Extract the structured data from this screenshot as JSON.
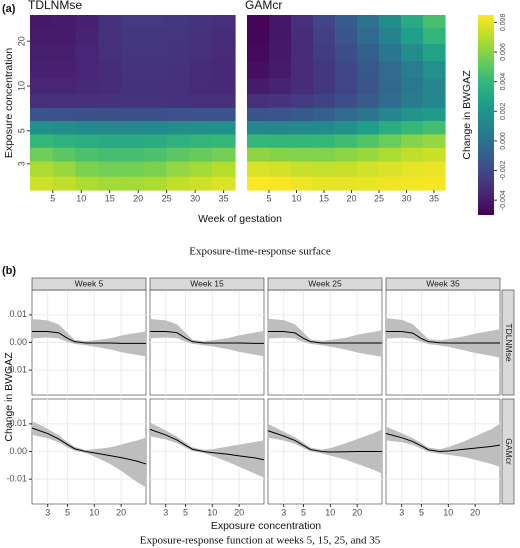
{
  "chart_data": [
    {
      "type": "heatmap",
      "panel_label": "(a)",
      "caption": "Exposure-time-response surface",
      "xlabel": "Week of gestation",
      "ylabel": "Exposure concentration",
      "colorbar_label": "Change in BWGAZ",
      "x": [
        3,
        7,
        11,
        15,
        19,
        23,
        27,
        31,
        35
      ],
      "y": [
        2.2,
        2.8,
        3.5,
        4.3,
        5.3,
        6.5,
        8,
        10,
        13,
        17,
        22,
        28
      ],
      "xlim": [
        1,
        37
      ],
      "ylim": [
        2,
        30
      ],
      "ylog": true,
      "xticks": [
        5,
        10,
        15,
        20,
        25,
        30,
        35
      ],
      "yticks": [
        3,
        5,
        10,
        20
      ],
      "zlim": [
        -0.005,
        0.0085
      ],
      "zticks": [
        -0.004,
        -0.002,
        {
          "value": 0,
          "label": "0.000"
        },
        0.002,
        0.004,
        0.006,
        0.008
      ],
      "colormap": "viridis",
      "panels": [
        {
          "title": "TDLNMse",
          "z": [
            [
              0.0075,
              0.0072,
              0.0068,
              0.0066,
              0.0066,
              0.0068,
              0.0072,
              0.0075,
              0.0078
            ],
            [
              0.0068,
              0.0064,
              0.0058,
              0.0056,
              0.0056,
              0.0058,
              0.0063,
              0.0066,
              0.007
            ],
            [
              0.0055,
              0.005,
              0.0046,
              0.0044,
              0.0044,
              0.0046,
              0.005,
              0.0053,
              0.0056
            ],
            [
              0.004,
              0.0036,
              0.0034,
              0.0032,
              0.0032,
              0.0033,
              0.0036,
              0.0038,
              0.004
            ],
            [
              0.0018,
              0.0016,
              0.0014,
              0.0013,
              0.0013,
              0.0014,
              0.0016,
              0.0017,
              0.0018
            ],
            [
              -0.0015,
              -0.0016,
              -0.0017,
              -0.0017,
              -0.0017,
              -0.0017,
              -0.0016,
              -0.0015,
              -0.0015
            ],
            [
              -0.0032,
              -0.0032,
              -0.0032,
              -0.0031,
              -0.003,
              -0.003,
              -0.0031,
              -0.0032,
              -0.0032
            ],
            [
              -0.0036,
              -0.0036,
              -0.0035,
              -0.0033,
              -0.0031,
              -0.0031,
              -0.0032,
              -0.0034,
              -0.0035
            ],
            [
              -0.0038,
              -0.0038,
              -0.0036,
              -0.0033,
              -0.003,
              -0.003,
              -0.0031,
              -0.0033,
              -0.0035
            ],
            [
              -0.0039,
              -0.0039,
              -0.0036,
              -0.0032,
              -0.0029,
              -0.0029,
              -0.003,
              -0.0032,
              -0.0034
            ],
            [
              -0.004,
              -0.004,
              -0.0037,
              -0.0031,
              -0.0028,
              -0.0028,
              -0.0029,
              -0.0031,
              -0.0033
            ],
            [
              -0.0041,
              -0.004,
              -0.0038,
              -0.0031,
              -0.0027,
              -0.0027,
              -0.0028,
              -0.003,
              -0.0032
            ]
          ]
        },
        {
          "title": "GAMcr",
          "z": [
            [
              0.0085,
              0.0084,
              0.0082,
              0.008,
              0.008,
              0.0081,
              0.0082,
              0.0083,
              0.0084
            ],
            [
              0.0078,
              0.0076,
              0.0074,
              0.0073,
              0.0074,
              0.0076,
              0.0078,
              0.008,
              0.0081
            ],
            [
              0.0062,
              0.006,
              0.0059,
              0.0059,
              0.0061,
              0.0064,
              0.0068,
              0.0072,
              0.0074
            ],
            [
              0.004,
              0.0039,
              0.0039,
              0.004,
              0.0043,
              0.0048,
              0.0054,
              0.006,
              0.0063
            ],
            [
              0.0012,
              0.0012,
              0.0013,
              0.0015,
              0.0019,
              0.0025,
              0.0033,
              0.004,
              0.0044
            ],
            [
              -0.0015,
              -0.0014,
              -0.0012,
              -0.0009,
              -0.0004,
              0.0003,
              0.0012,
              0.002,
              0.0024
            ],
            [
              -0.0032,
              -0.003,
              -0.0027,
              -0.0023,
              -0.0018,
              -0.0011,
              -0.0002,
              0.0006,
              0.0012
            ],
            [
              -0.004,
              -0.0037,
              -0.0033,
              -0.0028,
              -0.0022,
              -0.0014,
              -0.0005,
              0.0004,
              0.0012
            ],
            [
              -0.0045,
              -0.004,
              -0.0034,
              -0.0028,
              -0.0021,
              -0.0013,
              -0.0003,
              0.0008,
              0.0018
            ],
            [
              -0.0047,
              -0.0041,
              -0.0034,
              -0.0026,
              -0.0018,
              -0.0009,
              0.0003,
              0.0016,
              0.0028
            ],
            [
              -0.0048,
              -0.0042,
              -0.0033,
              -0.0024,
              -0.0014,
              -0.0004,
              0.001,
              0.0026,
              0.0038
            ],
            [
              -0.0048,
              -0.0042,
              -0.0032,
              -0.0022,
              -0.0011,
              0.0001,
              0.0016,
              0.0032,
              0.0045
            ]
          ]
        }
      ]
    },
    {
      "type": "facet-line",
      "panel_label": "(b)",
      "caption": "Exposure-response function at weeks 5, 15, 25, and 35",
      "xlabel": "Exposure concentration",
      "ylabel": "Change in BWGAZ",
      "x": [
        2,
        3,
        4,
        5,
        6,
        8,
        10,
        15,
        20,
        30,
        38
      ],
      "xlim": [
        2,
        38
      ],
      "xlog": true,
      "xticks": [
        3,
        5,
        10,
        20
      ],
      "ylim": [
        -0.019,
        0.019
      ],
      "yticks": [
        -0.01,
        {
          "value": 0,
          "label": "0.00"
        },
        0.01
      ],
      "grid": true,
      "line_color": "#000000",
      "band_color": "#bebebe",
      "columns": [
        "Week 5",
        "Week 15",
        "Week 25",
        "Week 35"
      ],
      "rows": [
        "TDLNMse",
        "GAMcr"
      ],
      "facets": [
        [
          {
            "values": [
              0.004,
              0.004,
              0.0035,
              0.0015,
              0.0003,
              -0.0002,
              -0.0002,
              -0.0002,
              -0.0003,
              -0.0003,
              -0.0003
            ],
            "lower": [
              0.0015,
              0.0018,
              0.0015,
              0.0002,
              -0.0005,
              -0.001,
              -0.0015,
              -0.0025,
              -0.0035,
              -0.0045,
              -0.005
            ],
            "upper": [
              0.0085,
              0.008,
              0.0065,
              0.0035,
              0.001,
              0.0005,
              0.0008,
              0.0015,
              0.0025,
              0.0035,
              0.004
            ]
          },
          {
            "values": [
              0.004,
              0.004,
              0.0036,
              0.0016,
              0.0003,
              -0.0002,
              -0.0002,
              -0.0002,
              -0.0002,
              -0.0003,
              -0.0003
            ],
            "lower": [
              0.0015,
              0.0018,
              0.0016,
              0.0003,
              -0.0005,
              -0.001,
              -0.0014,
              -0.0024,
              -0.0034,
              -0.0044,
              -0.005
            ],
            "upper": [
              0.0085,
              0.008,
              0.0066,
              0.0035,
              0.001,
              0.0005,
              0.0008,
              0.0016,
              0.0026,
              0.0036,
              0.0042
            ]
          },
          {
            "values": [
              0.004,
              0.004,
              0.0035,
              0.0015,
              0.0003,
              -0.0002,
              -0.0002,
              -0.0002,
              -0.0002,
              -0.0002,
              -0.0002
            ],
            "lower": [
              0.0014,
              0.0017,
              0.0015,
              0.0002,
              -0.0005,
              -0.001,
              -0.0015,
              -0.0026,
              -0.0036,
              -0.0046,
              -0.0052
            ],
            "upper": [
              0.0086,
              0.0081,
              0.0066,
              0.0036,
              0.0011,
              0.0006,
              0.0009,
              0.0017,
              0.0028,
              0.0038,
              0.0045
            ]
          },
          {
            "values": [
              0.004,
              0.004,
              0.0034,
              0.0014,
              0.0003,
              -0.0001,
              -0.0002,
              -0.0002,
              -0.0002,
              -0.0002,
              -0.0002
            ],
            "lower": [
              0.0014,
              0.0017,
              0.0014,
              0.0002,
              -0.0006,
              -0.0011,
              -0.0016,
              -0.0028,
              -0.0038,
              -0.0048,
              -0.0055
            ],
            "upper": [
              0.0088,
              0.0082,
              0.0066,
              0.0036,
              0.0012,
              0.0008,
              0.0012,
              0.0022,
              0.0032,
              0.0042,
              0.0048
            ]
          }
        ],
        [
          {
            "values": [
              0.0085,
              0.0065,
              0.0045,
              0.0025,
              0.001,
              0,
              -0.0005,
              -0.0015,
              -0.0022,
              -0.0035,
              -0.0045
            ],
            "lower": [
              0.006,
              0.0048,
              0.0033,
              0.0015,
              0.0003,
              -0.0005,
              -0.0018,
              -0.0045,
              -0.007,
              -0.011,
              -0.013
            ],
            "upper": [
              0.011,
              0.0082,
              0.0058,
              0.0035,
              0.0017,
              0.0005,
              0.0008,
              0.0015,
              0.0025,
              0.004,
              0.005
            ]
          },
          {
            "values": [
              0.008,
              0.006,
              0.0042,
              0.0023,
              0.0008,
              0,
              -0.0004,
              -0.001,
              -0.0016,
              -0.0023,
              -0.003
            ],
            "lower": [
              0.0055,
              0.0044,
              0.003,
              0.0014,
              0.0002,
              -0.0006,
              -0.0016,
              -0.0038,
              -0.0055,
              -0.008,
              -0.0095
            ],
            "upper": [
              0.0105,
              0.0076,
              0.0054,
              0.0032,
              0.0015,
              0.0006,
              0.0008,
              0.0018,
              0.0025,
              0.0035,
              0.004
            ]
          },
          {
            "values": [
              0.0075,
              0.0056,
              0.004,
              0.0022,
              0.0007,
              0,
              -0.0002,
              -0.0001,
              0,
              0,
              0
            ],
            "lower": [
              0.005,
              0.004,
              0.0028,
              0.0012,
              0,
              -0.0007,
              -0.0015,
              -0.003,
              -0.0045,
              -0.0065,
              -0.008
            ],
            "upper": [
              0.01,
              0.0072,
              0.0052,
              0.0032,
              0.0014,
              0.0007,
              0.0012,
              0.003,
              0.0045,
              0.0065,
              0.008
            ]
          },
          {
            "values": [
              0.0065,
              0.005,
              0.0036,
              0.002,
              0.0006,
              0,
              0.0002,
              0.0008,
              0.0012,
              0.0018,
              0.0023
            ],
            "lower": [
              0.004,
              0.0034,
              0.0024,
              0.001,
              -0.0002,
              -0.0008,
              -0.0012,
              -0.002,
              -0.003,
              -0.0045,
              -0.0055
            ],
            "upper": [
              0.009,
              0.0066,
              0.0048,
              0.003,
              0.0014,
              0.0008,
              0.0016,
              0.0036,
              0.0055,
              0.008,
              0.01
            ]
          }
        ]
      ]
    }
  ]
}
